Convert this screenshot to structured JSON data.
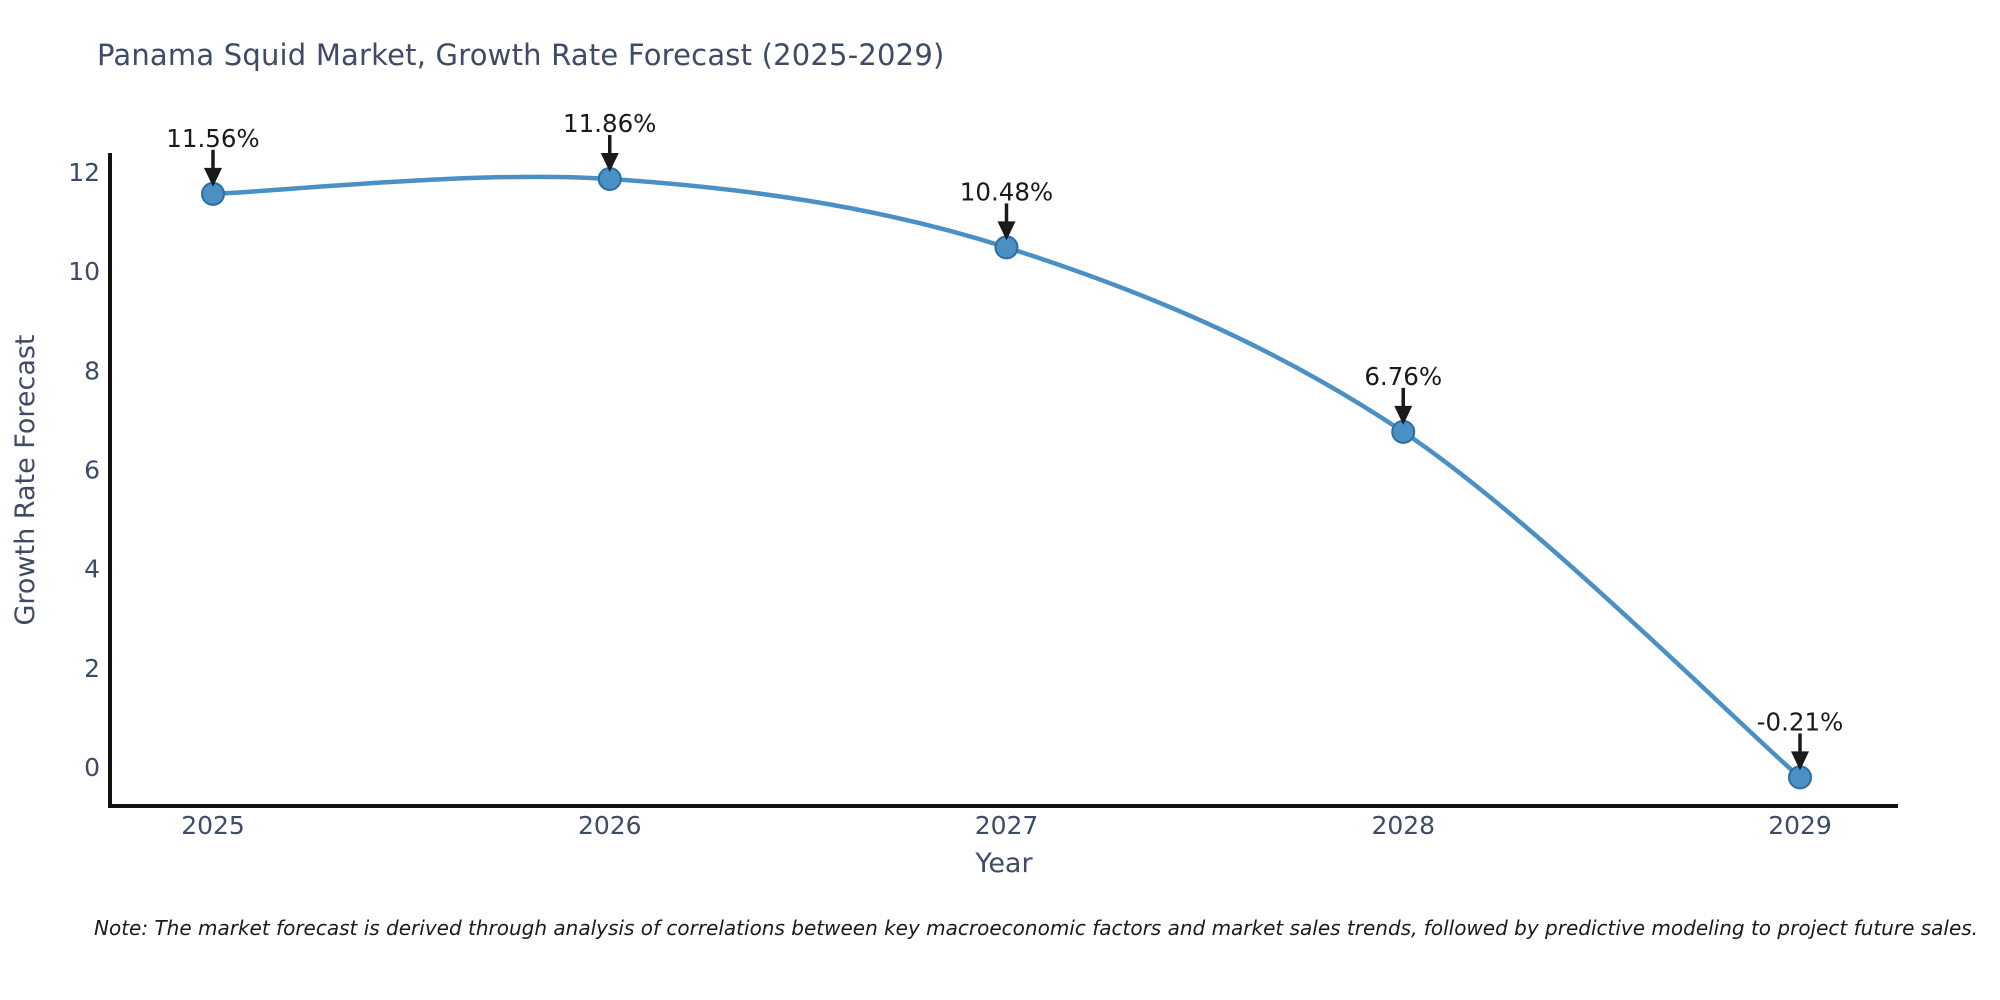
{
  "page": {
    "note": "Note: The market forecast is derived through analysis of correlations between key macroeconomic factors and market sales trends, followed by predictive modeling to project future sales."
  },
  "chart_data": {
    "type": "line",
    "title": "Panama Squid Market, Growth Rate Forecast (2025-2029)",
    "xlabel": "Year",
    "ylabel": "Growth Rate Forecast",
    "categories": [
      "2025",
      "2026",
      "2027",
      "2028",
      "2029"
    ],
    "values": [
      11.56,
      11.86,
      10.48,
      6.76,
      -0.21
    ],
    "point_labels": [
      "11.56%",
      "11.86%",
      "10.48%",
      "6.76%",
      "-0.21%"
    ],
    "yticks": [
      0,
      2,
      4,
      6,
      8,
      10,
      12
    ],
    "ylim": [
      -0.8,
      12.4
    ],
    "grid": false,
    "legend_position": "none",
    "marker_shape": "circle",
    "annotation_style": "value label with downward arrow to point",
    "colors": {
      "line": "#4a90c4",
      "marker_fill": "#4a90c4",
      "marker_edge": "#2e6ca5",
      "title_text": "#3d4b66",
      "axis_text": "#3d4b66",
      "annotation_text": "#1a1a1a",
      "note_text": "#1a1a1a",
      "spine": "#111111",
      "background": "#ffffff"
    }
  }
}
